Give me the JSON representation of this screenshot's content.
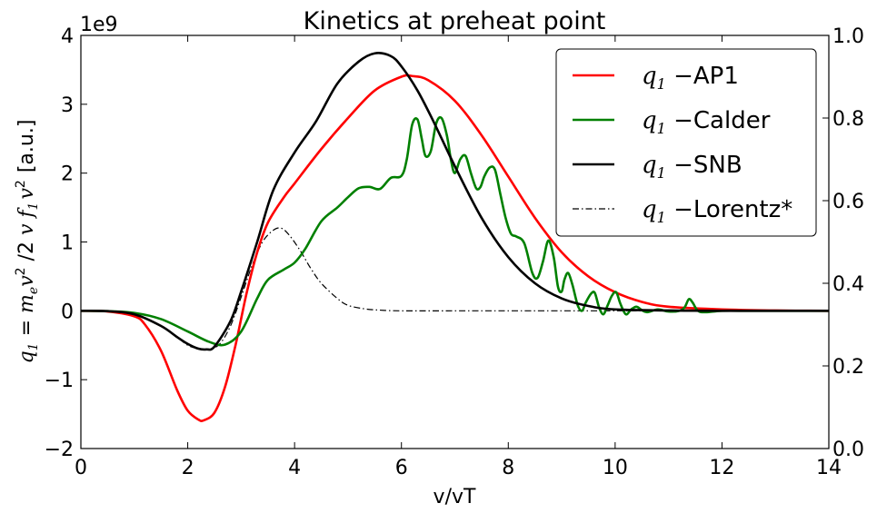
{
  "chart_data": {
    "type": "line",
    "title": "Kinetics at preheat point",
    "xlabel": "v/vT",
    "ylabel": {
      "q": "q",
      "q_sub": "1",
      "eq": " = ",
      "m": "m",
      "m_sub": "e",
      "v": "v",
      "sup2": "2",
      "slash2": " /2 ",
      "vf": "v f",
      "f_sub": "1",
      "v2": "v",
      "unit": "[a.u.]"
    },
    "y_offset_text": "1e9",
    "xlim": [
      0,
      14
    ],
    "ylim": [
      -2,
      4
    ],
    "y2lim": [
      0.0,
      1.0
    ],
    "x_ticks": [
      "0",
      "2",
      "4",
      "6",
      "8",
      "10",
      "12",
      "14"
    ],
    "y_ticks": [
      "−2",
      "−1",
      "0",
      "1",
      "2",
      "3",
      "4"
    ],
    "y2_ticks": [
      "0.0",
      "0.2",
      "0.4",
      "0.6",
      "0.8",
      "1.0"
    ],
    "x_tick_values": [
      0,
      2,
      4,
      6,
      8,
      10,
      12,
      14
    ],
    "y_tick_values": [
      -2,
      -1,
      0,
      1,
      2,
      3,
      4
    ],
    "y2_tick_values": [
      0.0,
      0.2,
      0.4,
      0.6,
      0.8,
      1.0
    ],
    "legend_position": "top-right",
    "series": [
      {
        "legend_math": "q",
        "legend_sub": "1",
        "legend_text": " −AP1",
        "color": "#ff0000",
        "style": "solid",
        "x": [
          0,
          0.5,
          1.0,
          1.2,
          1.5,
          1.8,
          2.0,
          2.2,
          2.3,
          2.5,
          2.7,
          2.9,
          3.1,
          3.3,
          3.5,
          3.8,
          4.0,
          4.5,
          5.0,
          5.5,
          6.0,
          6.2,
          6.5,
          7.0,
          7.5,
          8.0,
          8.5,
          9.0,
          9.5,
          10.0,
          10.5,
          11.0,
          12.0,
          13.0,
          14.0
        ],
        "y": [
          0.0,
          -0.01,
          -0.08,
          -0.2,
          -0.58,
          -1.15,
          -1.45,
          -1.58,
          -1.59,
          -1.48,
          -1.1,
          -0.48,
          0.25,
          0.85,
          1.28,
          1.65,
          1.85,
          2.35,
          2.8,
          3.2,
          3.4,
          3.41,
          3.35,
          3.05,
          2.55,
          1.95,
          1.35,
          0.85,
          0.5,
          0.27,
          0.13,
          0.06,
          0.02,
          0.005,
          0.0
        ]
      },
      {
        "legend_math": "q",
        "legend_sub": "1",
        "legend_text": " −Calder",
        "color": "#008000",
        "style": "solid",
        "x": [
          0,
          0.5,
          1.0,
          1.5,
          2.0,
          2.4,
          2.7,
          3.0,
          3.3,
          3.5,
          3.8,
          4.0,
          4.2,
          4.5,
          4.8,
          5.0,
          5.2,
          5.4,
          5.6,
          5.8,
          6.0,
          6.1,
          6.2,
          6.3,
          6.38,
          6.45,
          6.55,
          6.65,
          6.75,
          6.85,
          6.93,
          7.0,
          7.1,
          7.2,
          7.3,
          7.4,
          7.48,
          7.55,
          7.65,
          7.75,
          7.85,
          7.95,
          8.05,
          8.15,
          8.3,
          8.45,
          8.55,
          8.65,
          8.75,
          8.85,
          8.93,
          9.0,
          9.05,
          9.12,
          9.2,
          9.3,
          9.38,
          9.45,
          9.55,
          9.62,
          9.7,
          9.78,
          9.86,
          9.94,
          10.02,
          10.1,
          10.2,
          10.3,
          10.4,
          10.5,
          10.6,
          10.8,
          11.0,
          11.2,
          11.3,
          11.38,
          11.45,
          11.55,
          11.7,
          12.0,
          12.5,
          13.0,
          13.5,
          14.0
        ],
        "y": [
          0.0,
          -0.005,
          -0.03,
          -0.12,
          -0.3,
          -0.45,
          -0.49,
          -0.3,
          0.18,
          0.45,
          0.6,
          0.7,
          0.9,
          1.3,
          1.5,
          1.65,
          1.78,
          1.8,
          1.77,
          1.93,
          1.96,
          2.2,
          2.7,
          2.78,
          2.5,
          2.25,
          2.32,
          2.72,
          2.8,
          2.55,
          2.18,
          2.0,
          2.2,
          2.25,
          2.0,
          1.78,
          1.8,
          1.95,
          2.08,
          2.05,
          1.7,
          1.35,
          1.12,
          1.08,
          0.98,
          0.55,
          0.48,
          0.72,
          1.02,
          0.78,
          0.35,
          0.28,
          0.45,
          0.55,
          0.38,
          0.08,
          0.0,
          0.12,
          0.25,
          0.26,
          0.05,
          -0.05,
          0.08,
          0.22,
          0.27,
          0.1,
          -0.05,
          0.02,
          0.06,
          0.01,
          -0.02,
          0.02,
          -0.01,
          0.0,
          0.05,
          0.17,
          0.12,
          0.0,
          -0.02,
          0.0,
          0.0,
          0.0,
          0.0,
          0.0
        ]
      },
      {
        "legend_math": "q",
        "legend_sub": "1",
        "legend_text": " −SNB",
        "color": "#000000",
        "style": "solid",
        "x": [
          0,
          0.5,
          1.0,
          1.5,
          1.8,
          2.0,
          2.2,
          2.35,
          2.5,
          2.8,
          3.0,
          3.3,
          3.6,
          4.0,
          4.4,
          4.8,
          5.2,
          5.5,
          5.8,
          6.0,
          6.3,
          6.6,
          7.0,
          7.5,
          8.0,
          8.5,
          9.0,
          9.5,
          10.0,
          11.0,
          12.0,
          14.0
        ],
        "y": [
          0.0,
          -0.005,
          -0.05,
          -0.22,
          -0.38,
          -0.48,
          -0.55,
          -0.56,
          -0.52,
          -0.15,
          0.28,
          1.0,
          1.75,
          2.3,
          2.75,
          3.3,
          3.62,
          3.74,
          3.7,
          3.55,
          3.2,
          2.75,
          2.1,
          1.35,
          0.78,
          0.4,
          0.18,
          0.07,
          0.02,
          0.005,
          0.0,
          0.0
        ]
      },
      {
        "legend_math": "q",
        "legend_sub": "1",
        "legend_text": " −Lorentz*",
        "color": "#000000",
        "style": "dashdot",
        "x": [
          0,
          0.5,
          1.0,
          1.5,
          1.8,
          2.0,
          2.2,
          2.4,
          2.6,
          2.8,
          3.0,
          3.2,
          3.4,
          3.6,
          3.75,
          3.9,
          4.1,
          4.3,
          4.5,
          4.8,
          5.0,
          5.3,
          5.6,
          6.0,
          7.0,
          8.0,
          10.0,
          12.0,
          14.0
        ],
        "y": [
          0.0,
          -0.005,
          -0.05,
          -0.22,
          -0.38,
          -0.5,
          -0.55,
          -0.56,
          -0.48,
          -0.22,
          0.2,
          0.65,
          1.0,
          1.17,
          1.2,
          1.1,
          0.88,
          0.62,
          0.4,
          0.18,
          0.08,
          0.03,
          0.01,
          0.0,
          0.0,
          0.0,
          0.0,
          0.0,
          0.0
        ]
      }
    ]
  }
}
